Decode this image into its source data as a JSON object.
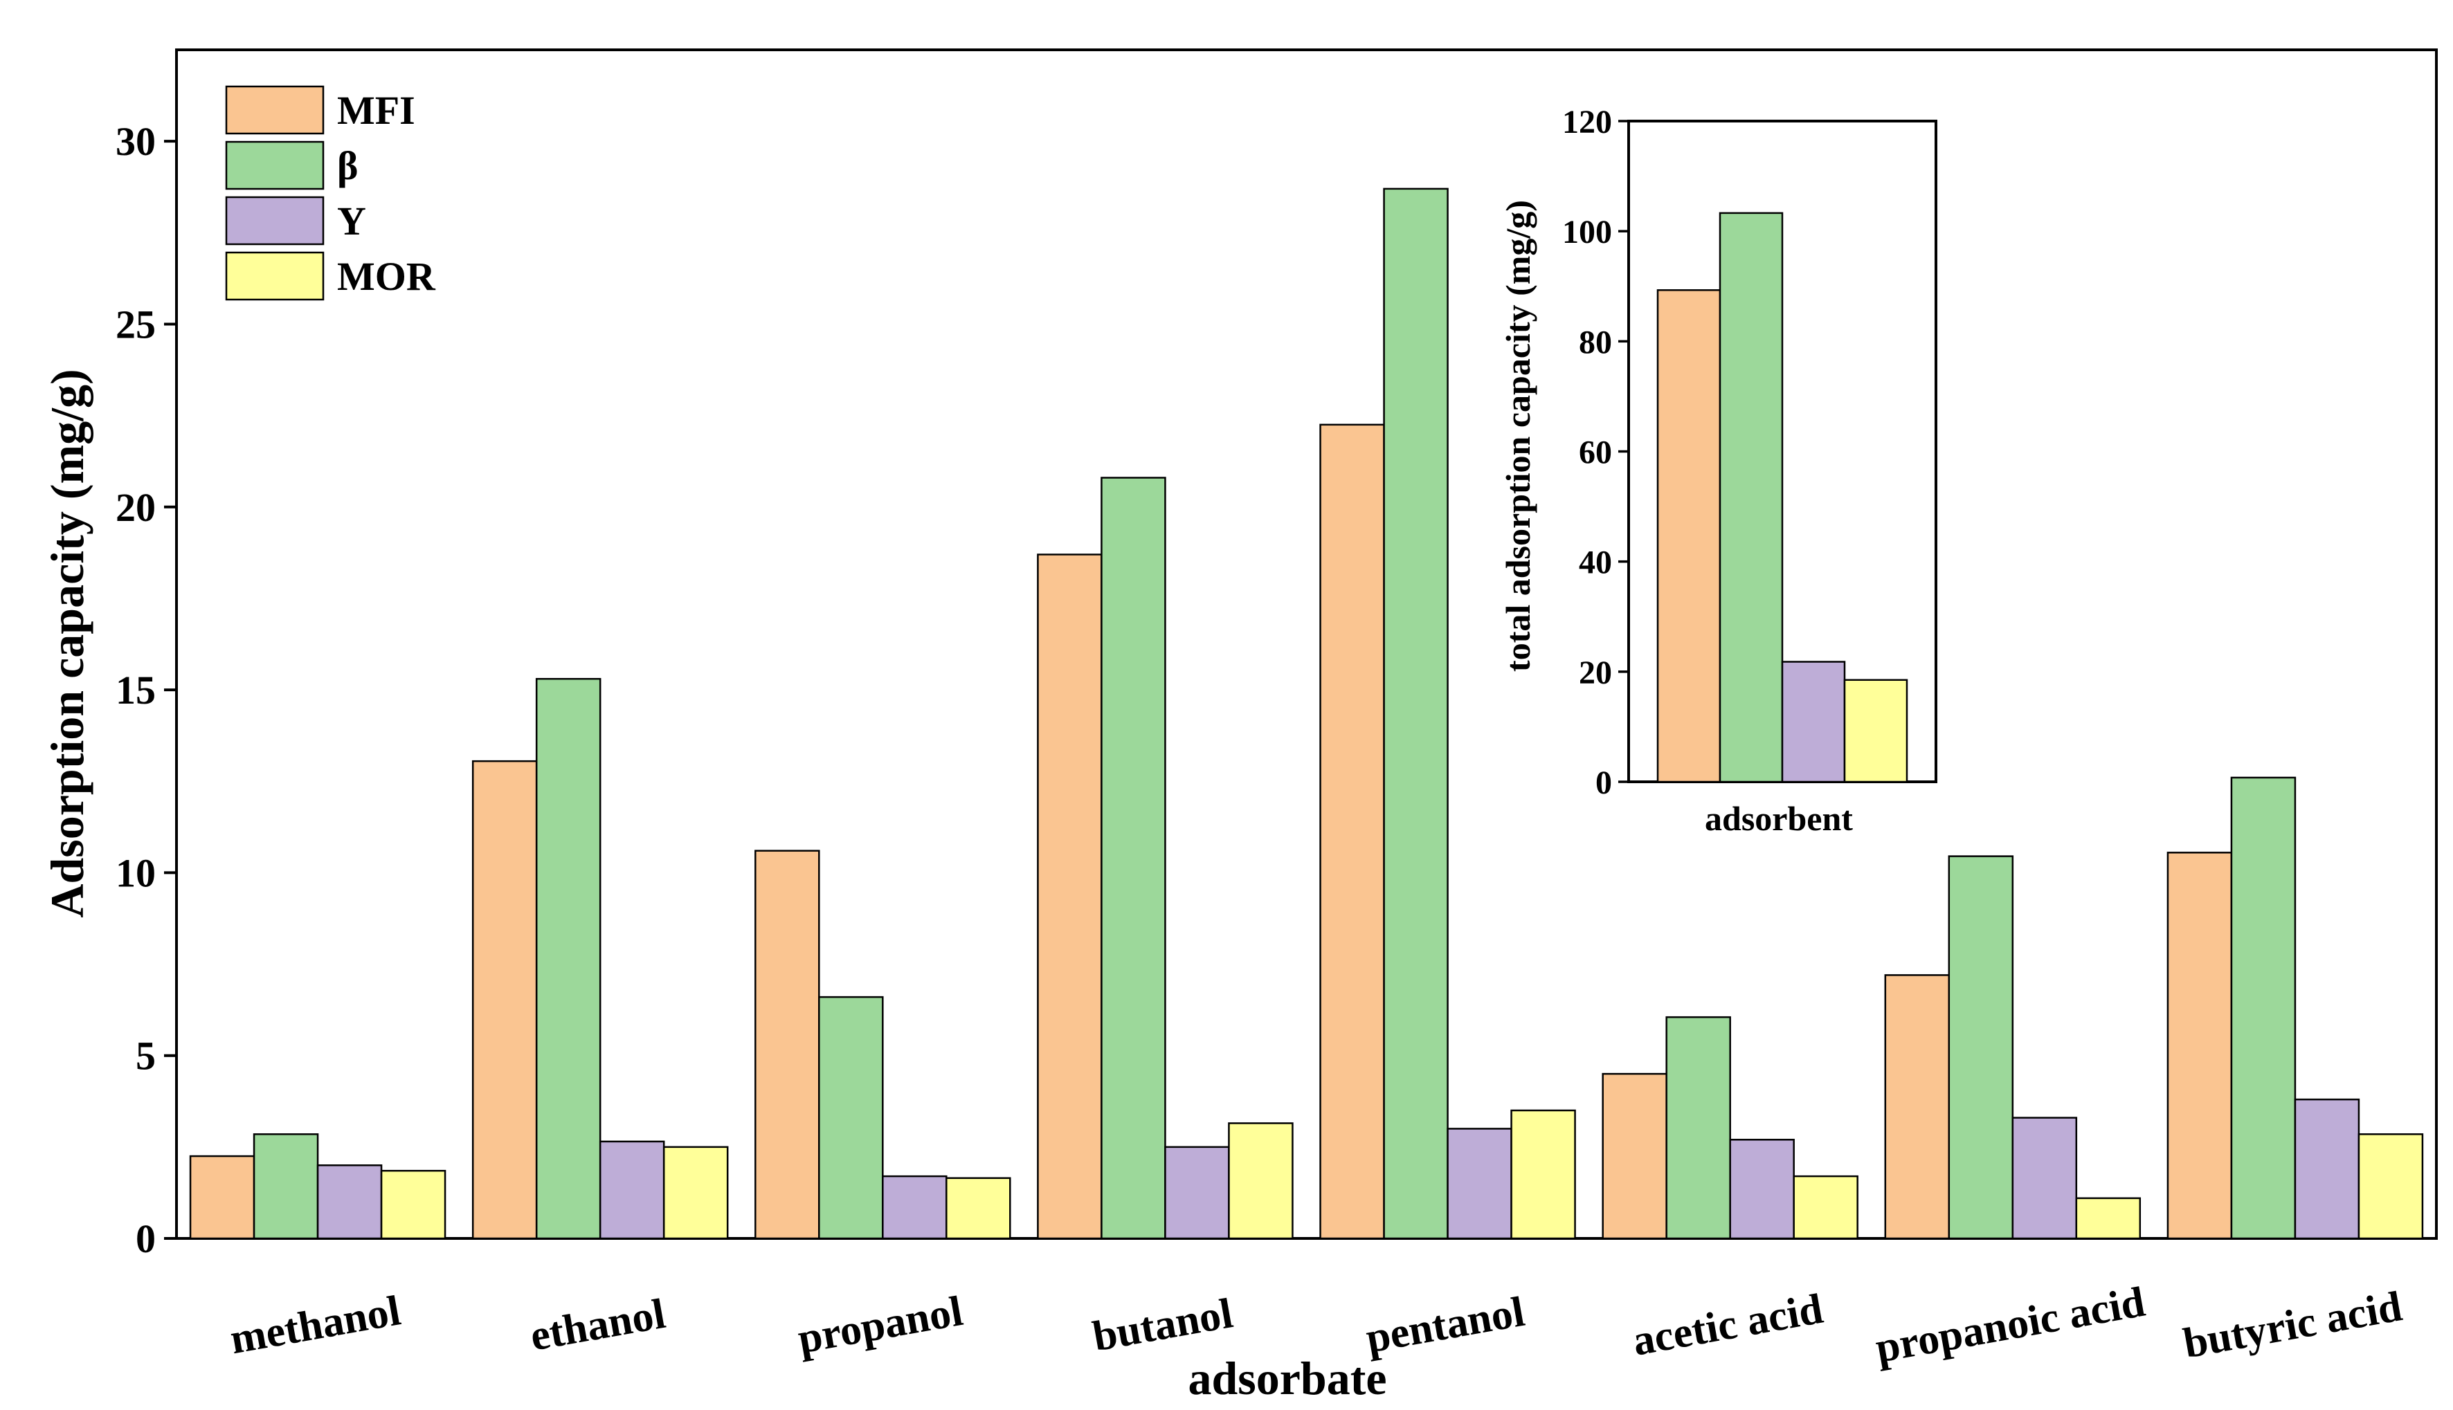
{
  "colors": {
    "MFI": "#FAC591",
    "beta": "#9CD89A",
    "Y": "#BEADD7",
    "MOR": "#FFFF99",
    "stroke": "#000000"
  },
  "chart_data": [
    {
      "type": "bar",
      "title": "",
      "xlabel": "adsorbate",
      "ylabel": "Adsorption capacity (mg/g)",
      "ylim": [
        0,
        32.5
      ],
      "yticks": [
        0,
        5,
        10,
        15,
        20,
        25,
        30
      ],
      "yticklabels": [
        "0",
        "5",
        "10",
        "15",
        "20",
        "25",
        "30"
      ],
      "legend_position": "top-left",
      "categories": [
        "methanol",
        "ethanol",
        "propanol",
        "butanol",
        "pentanol",
        "acetic acid",
        "propanoic acid",
        "butyric acid"
      ],
      "series": [
        {
          "name": "MFI",
          "color_key": "MFI",
          "values": [
            2.25,
            13.05,
            10.6,
            18.7,
            22.25,
            4.5,
            7.2,
            10.55
          ]
        },
        {
          "name": "β",
          "color_key": "beta",
          "values": [
            2.85,
            15.3,
            6.6,
            20.8,
            28.7,
            6.05,
            10.45,
            12.6
          ]
        },
        {
          "name": "Y",
          "color_key": "Y",
          "values": [
            2.0,
            2.65,
            1.7,
            2.5,
            3.0,
            2.7,
            3.3,
            3.8
          ]
        },
        {
          "name": "MOR",
          "color_key": "MOR",
          "values": [
            1.85,
            2.5,
            1.65,
            3.15,
            3.5,
            1.7,
            1.1,
            2.85
          ]
        }
      ]
    },
    {
      "type": "bar",
      "title": "",
      "xlabel": "adsorbent",
      "ylabel": "total adsorption capacity (mg/g)",
      "ylim": [
        0,
        120
      ],
      "yticks": [
        0,
        20,
        40,
        60,
        80,
        100,
        120
      ],
      "yticklabels": [
        "0",
        "20",
        "40",
        "60",
        "80",
        "100",
        "120"
      ],
      "categories": [
        "MFI",
        "β",
        "Y",
        "MOR"
      ],
      "series": [
        {
          "name": "total",
          "values": [
            89.3,
            103.3,
            21.8,
            18.5
          ],
          "color_keys": [
            "MFI",
            "beta",
            "Y",
            "MOR"
          ]
        }
      ]
    }
  ]
}
